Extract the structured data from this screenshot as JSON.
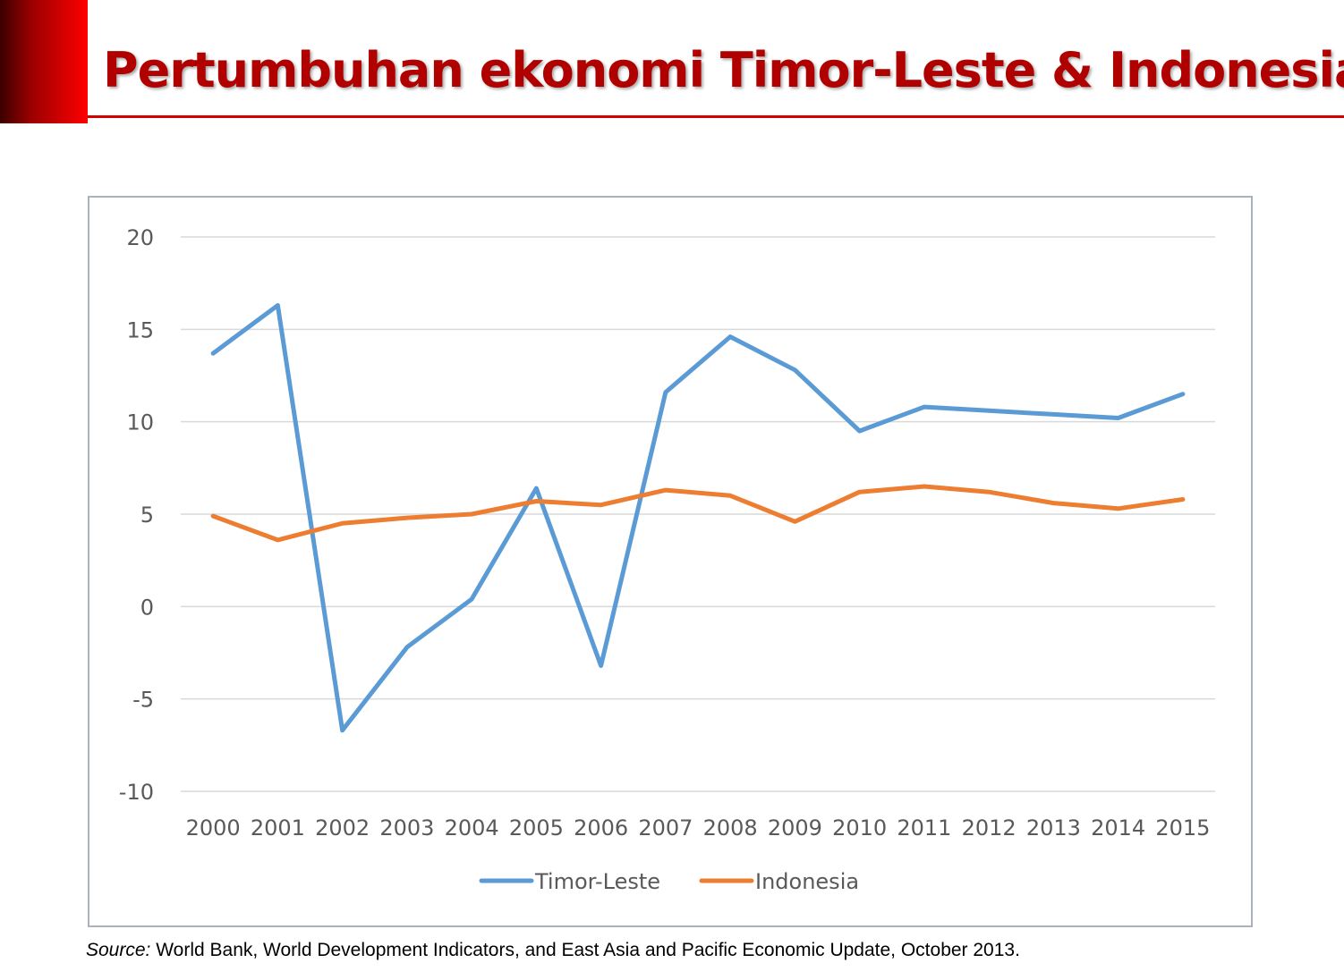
{
  "slide": {
    "title": "Pertumbuhan ekonomi Timor-Leste & Indonesia",
    "source_label": "Source:",
    "source_text": " World Bank, World Development Indicators, and East Asia and Pacific Economic Update, October 2013."
  },
  "colors": {
    "title": "#b00000",
    "rule": "#d40000",
    "timor_leste": "#5b9bd5",
    "indonesia": "#ed7d31",
    "grid": "#d9d9d9",
    "frame": "#a9b3bd"
  },
  "chart_data": {
    "type": "line",
    "x": [
      "2000",
      "2001",
      "2002",
      "2003",
      "2004",
      "2005",
      "2006",
      "2007",
      "2008",
      "2009",
      "2010",
      "2011",
      "2012",
      "2013",
      "2014",
      "2015"
    ],
    "yticks": [
      20,
      15,
      10,
      5,
      0,
      -5,
      -10
    ],
    "ylim": [
      -10,
      20
    ],
    "grid": true,
    "legend_position": "bottom",
    "series": [
      {
        "name": "Timor-Leste",
        "color": "#5b9bd5",
        "values": [
          13.7,
          16.3,
          -6.7,
          -2.2,
          0.4,
          6.4,
          -3.2,
          11.6,
          14.6,
          12.8,
          9.5,
          10.8,
          10.6,
          10.4,
          10.2,
          11.5
        ]
      },
      {
        "name": "Indonesia",
        "color": "#ed7d31",
        "values": [
          4.9,
          3.6,
          4.5,
          4.8,
          5.0,
          5.7,
          5.5,
          6.3,
          6.0,
          4.6,
          6.2,
          6.5,
          6.2,
          5.6,
          5.3,
          5.8
        ]
      }
    ]
  }
}
